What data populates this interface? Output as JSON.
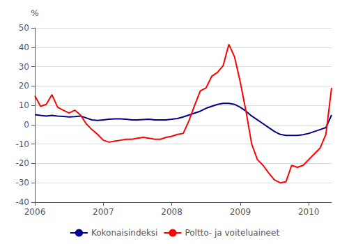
{
  "chart_data": {
    "type": "line",
    "ylabel": "%",
    "x": [
      2006,
      2006.0833333333333,
      2006.1666666666667,
      2006.25,
      2006.3333333333333,
      2006.4166666666667,
      2006.5,
      2006.5833333333333,
      2006.6666666666667,
      2006.75,
      2006.8333333333333,
      2006.9166666666667,
      2007,
      2007.0833333333333,
      2007.1666666666667,
      2007.25,
      2007.3333333333333,
      2007.4166666666667,
      2007.5,
      2007.5833333333333,
      2007.6666666666667,
      2007.75,
      2007.8333333333333,
      2007.9166666666667,
      2008,
      2008.0833333333333,
      2008.1666666666667,
      2008.25,
      2008.3333333333333,
      2008.4166666666667,
      2008.5,
      2008.5833333333333,
      2008.6666666666667,
      2008.75,
      2008.8333333333333,
      2008.9166666666667,
      2009,
      2009.0833333333333,
      2009.1666666666667,
      2009.25,
      2009.3333333333333,
      2009.4166666666667,
      2009.5,
      2009.5833333333333,
      2009.6666666666667,
      2009.75,
      2009.8333333333333,
      2009.9166666666667,
      2010,
      2010.0833333333333,
      2010.1666666666667,
      2010.25,
      2010.3333333333333
    ],
    "series": [
      {
        "name": "Kokonaisindeksi",
        "color": "#00008B",
        "values": [
          5.2,
          4.8,
          4.5,
          4.8,
          4.5,
          4.3,
          4.0,
          4.2,
          4.5,
          3.5,
          2.5,
          2.2,
          2.5,
          2.8,
          3.0,
          3.0,
          2.8,
          2.5,
          2.5,
          2.7,
          2.8,
          2.5,
          2.5,
          2.5,
          2.8,
          3.2,
          4.0,
          5.0,
          6.0,
          7.0,
          8.5,
          9.5,
          10.5,
          11.0,
          11.0,
          10.5,
          9.0,
          7.0,
          4.5,
          2.5,
          0.5,
          -1.5,
          -3.5,
          -5.0,
          -5.5,
          -5.5,
          -5.5,
          -5.2,
          -4.5,
          -3.5,
          -2.5,
          -1.5,
          5.0
        ]
      },
      {
        "name": "Poltto- ja voiteluaineet",
        "color": "#FF0000",
        "values": [
          15.0,
          9.5,
          10.5,
          15.5,
          9.0,
          7.5,
          6.0,
          7.5,
          5.0,
          0.5,
          -2.5,
          -5.0,
          -8.0,
          -9.0,
          -8.5,
          -8.0,
          -7.5,
          -7.5,
          -7.0,
          -6.5,
          -7.0,
          -7.5,
          -7.5,
          -6.5,
          -6.0,
          -5.0,
          -4.5,
          2.0,
          10.0,
          17.5,
          19.0,
          25.0,
          27.0,
          30.5,
          41.5,
          35.0,
          22.0,
          7.0,
          -10.0,
          -18.0,
          -21.0,
          -25.0,
          -28.5,
          -30.0,
          -29.5,
          -21.0,
          -22.0,
          -21.0,
          -18.0,
          -15.0,
          -12.0,
          -5.0,
          19.0
        ]
      }
    ],
    "xlim": [
      2006,
      2010.3333333333333
    ],
    "xticks": [
      2006,
      2007,
      2008,
      2009,
      2010
    ],
    "ylim": [
      -40,
      50
    ],
    "yticks": [
      -40,
      -30,
      -20,
      -10,
      0,
      10,
      20,
      30,
      40,
      50
    ],
    "grid": true,
    "legend": "bottom"
  }
}
